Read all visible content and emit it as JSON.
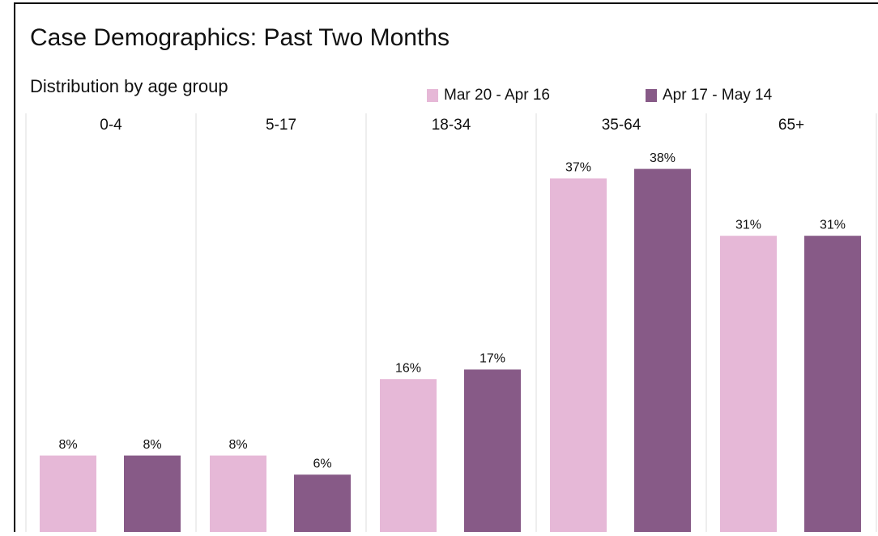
{
  "chart_data": {
    "type": "bar",
    "title": "Case Demographics: Past Two Months",
    "subtitle": "Distribution by age group",
    "categories": [
      "0-4",
      "5-17",
      "18-34",
      "35-64",
      "65+"
    ],
    "series": [
      {
        "name": "Mar 20 - Apr 16",
        "color": "#e6b8d7",
        "values": [
          8,
          8,
          16,
          37,
          31
        ],
        "value_labels": [
          "8%",
          "8%",
          "16%",
          "37%",
          "31%"
        ]
      },
      {
        "name": "Apr 17 - May 14",
        "color": "#875a87",
        "values": [
          8,
          6,
          17,
          38,
          31
        ],
        "value_labels": [
          "8%",
          "6%",
          "17%",
          "38%",
          "31%"
        ]
      }
    ],
    "ylim": [
      0,
      40
    ]
  }
}
